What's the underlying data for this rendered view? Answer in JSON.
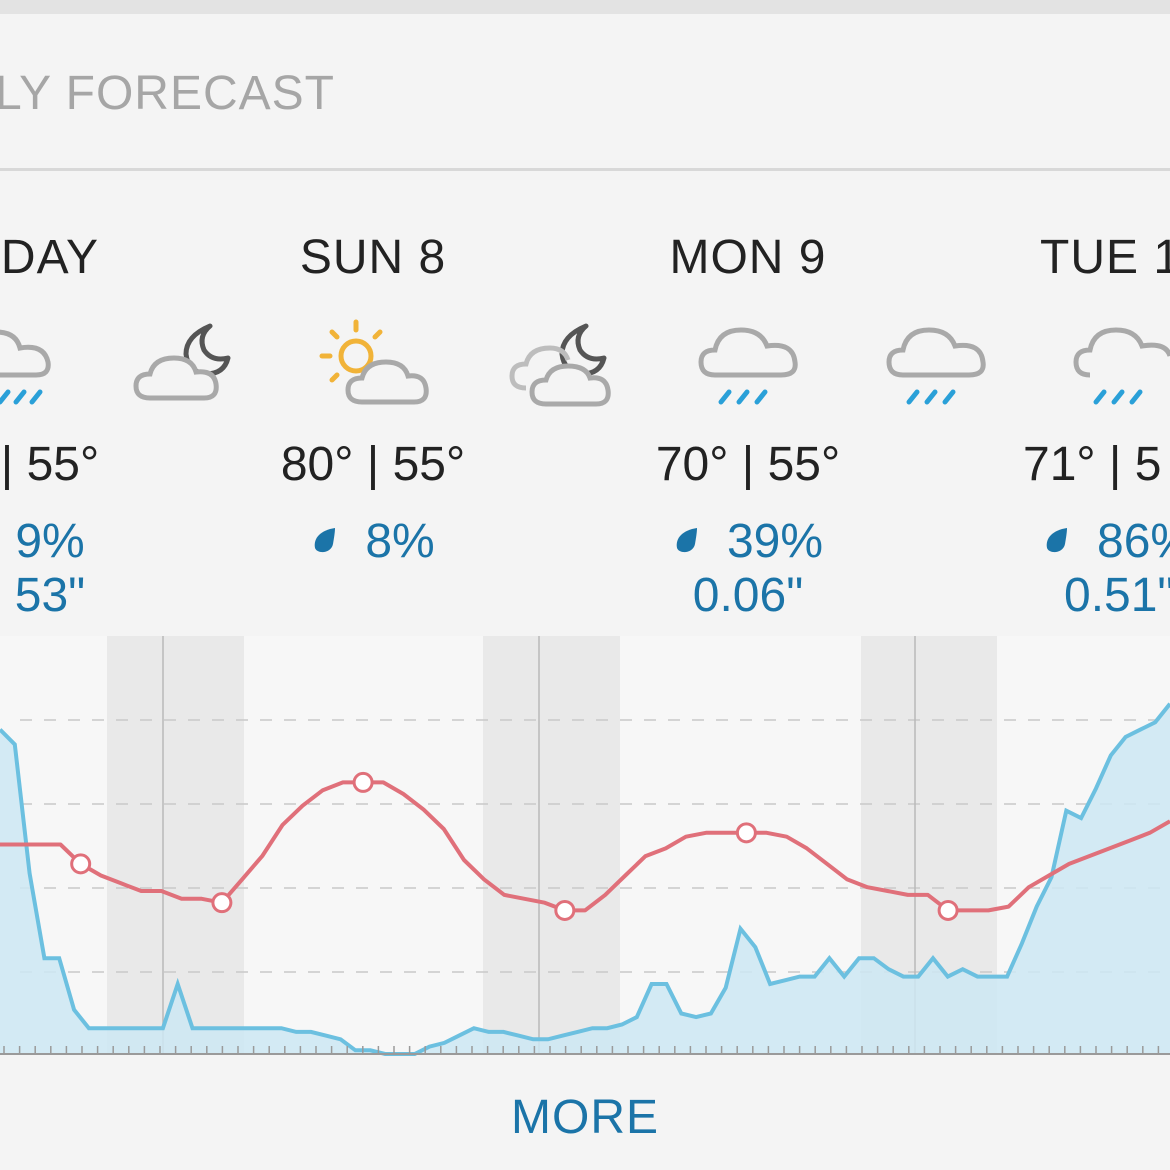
{
  "section": {
    "title": "LY FORECAST"
  },
  "days": [
    {
      "name": "DAY",
      "temps": "| 55°",
      "precip": "9%",
      "amount": "53\""
    },
    {
      "name": "SUN 8",
      "temps": "80° | 55°",
      "precip": "8%",
      "amount": ""
    },
    {
      "name": "MON 9",
      "temps": "70° | 55°",
      "precip": "39%",
      "amount": "0.06\""
    },
    {
      "name": "TUE 1",
      "temps": "71° | 5",
      "precip": "86%",
      "amount": "0.51\""
    }
  ],
  "icons": {
    "day0": "rain-icon",
    "night0": "partly-cloudy-night-icon",
    "day1": "partly-sunny-icon",
    "night1": "partly-cloudy-night-icon",
    "day2": "rain-icon",
    "night2": "rain-icon",
    "day3": "rain-icon"
  },
  "colors": {
    "temperature_line": "#e0707a",
    "precip_line": "#6cc0e0",
    "precip_fill": "#cde8f3",
    "accent_text": "#1b74a8"
  },
  "chart_data": {
    "type": "area",
    "series": [
      {
        "values": [
          0.88,
          0.84,
          0.49,
          0.26,
          0.26,
          0.12,
          0.07,
          0.07,
          0.07,
          0.07,
          0.07,
          0.07,
          0.19,
          0.07,
          0.07,
          0.07,
          0.07,
          0.07,
          0.07,
          0.07,
          0.06,
          0.06,
          0.05,
          0.04,
          0.01,
          0.01,
          0.0,
          0.0,
          0.0,
          0.02,
          0.03,
          0.05,
          0.07,
          0.06,
          0.06,
          0.05,
          0.04,
          0.04,
          0.05,
          0.06,
          0.07,
          0.07,
          0.08,
          0.1,
          0.19,
          0.19,
          0.11,
          0.1,
          0.11,
          0.18,
          0.34,
          0.29,
          0.19,
          0.2,
          0.21,
          0.21,
          0.26,
          0.21,
          0.26,
          0.26,
          0.23,
          0.21,
          0.21,
          0.26,
          0.21,
          0.23,
          0.21,
          0.21,
          0.21,
          0.3,
          0.4,
          0.48,
          0.66,
          0.64,
          0.72,
          0.81,
          0.86,
          0.88,
          0.9,
          0.95
        ]
      },
      {
        "values": [
          0.54,
          0.54,
          0.54,
          0.54,
          0.49,
          0.46,
          0.44,
          0.42,
          0.42,
          0.4,
          0.4,
          0.39,
          0.45,
          0.51,
          0.59,
          0.64,
          0.68,
          0.7,
          0.7,
          0.7,
          0.67,
          0.63,
          0.58,
          0.5,
          0.45,
          0.41,
          0.4,
          0.39,
          0.37,
          0.37,
          0.41,
          0.46,
          0.51,
          0.53,
          0.56,
          0.57,
          0.57,
          0.57,
          0.57,
          0.56,
          0.53,
          0.49,
          0.45,
          0.43,
          0.42,
          0.41,
          0.41,
          0.37,
          0.37,
          0.37,
          0.38,
          0.43,
          0.46,
          0.49,
          0.51,
          0.53,
          0.55,
          0.57,
          0.6
        ]
      }
    ],
    "grid": true
  },
  "more": {
    "label": "MORE"
  }
}
